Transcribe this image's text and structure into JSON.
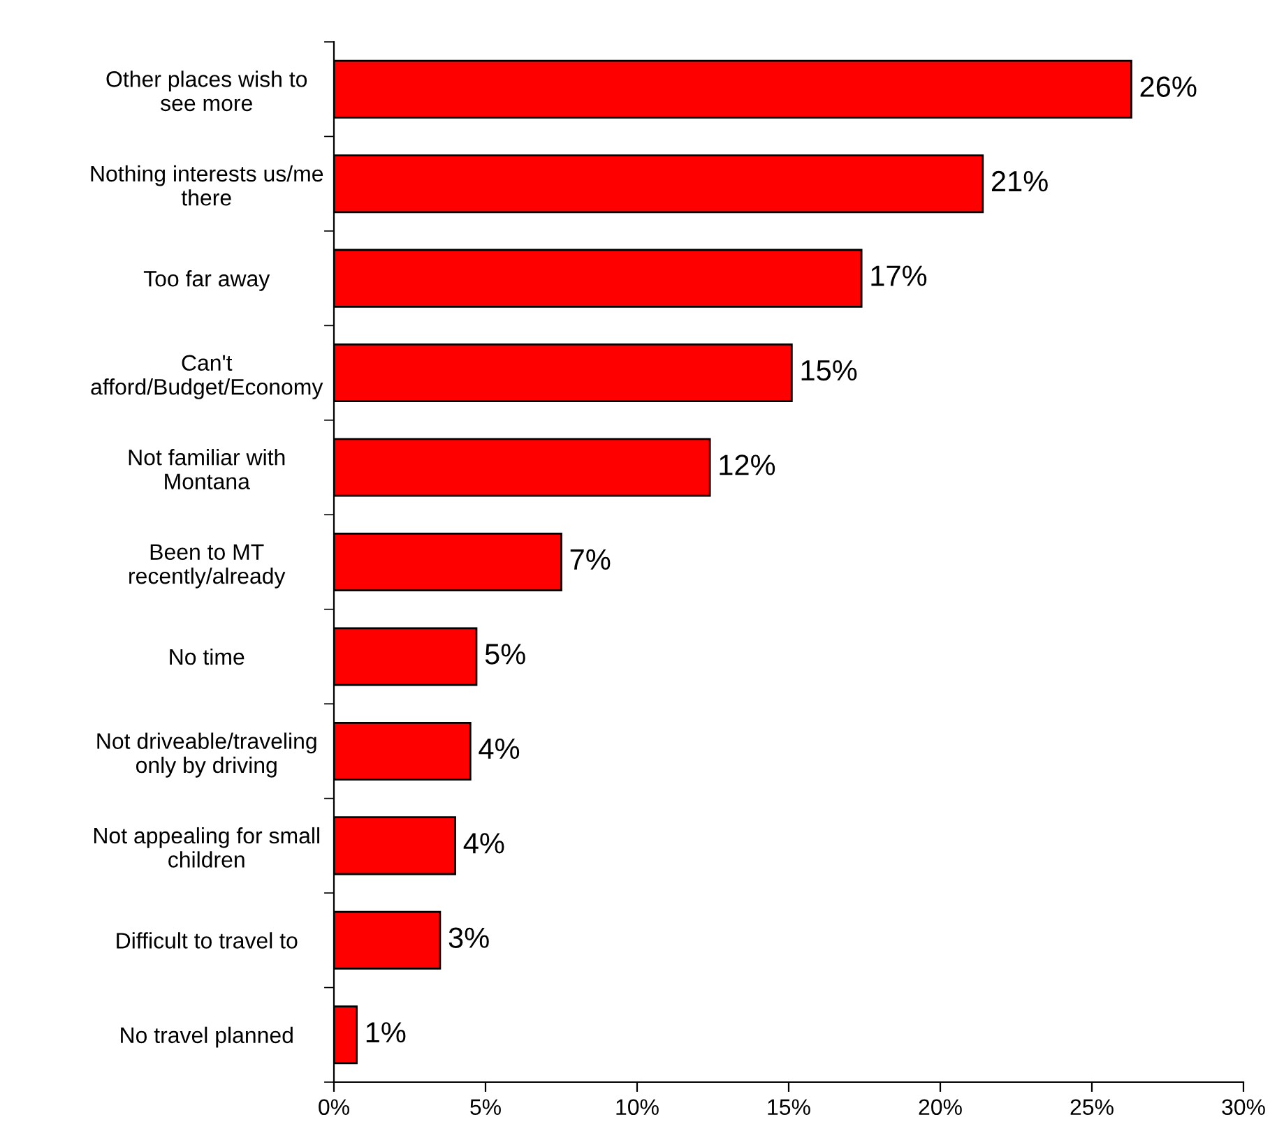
{
  "chart_data": {
    "type": "bar",
    "orientation": "horizontal",
    "categories": [
      "Other places wish to\nsee more",
      "Nothing interests us/me\nthere",
      "Too far away",
      "Can't\nafford/Budget/Economy",
      "Not familiar with\nMontana",
      "Been to MT\nrecently/already",
      "No time",
      "Not driveable/traveling\nonly by driving",
      "Not appealing for small\nchildren",
      "Difficult to travel to",
      "No travel planned"
    ],
    "values": [
      26.3,
      21.4,
      17.4,
      15.1,
      12.4,
      7.5,
      4.7,
      4.5,
      4.0,
      3.5,
      0.75
    ],
    "value_labels": [
      "26%",
      "21%",
      "17%",
      "15%",
      "12%",
      "7%",
      "5%",
      "4%",
      "4%",
      "3%",
      "1%"
    ],
    "color": "#ff0000",
    "xlim": [
      0,
      30
    ],
    "xticks": [
      {
        "value": 0,
        "label": "0%"
      },
      {
        "value": 5,
        "label": "5%"
      },
      {
        "value": 10,
        "label": "10%"
      },
      {
        "value": 15,
        "label": "15%"
      },
      {
        "value": 20,
        "label": "20%"
      },
      {
        "value": 25,
        "label": "25%"
      },
      {
        "value": 30,
        "label": "30%"
      }
    ],
    "grid": false,
    "legend": false
  }
}
